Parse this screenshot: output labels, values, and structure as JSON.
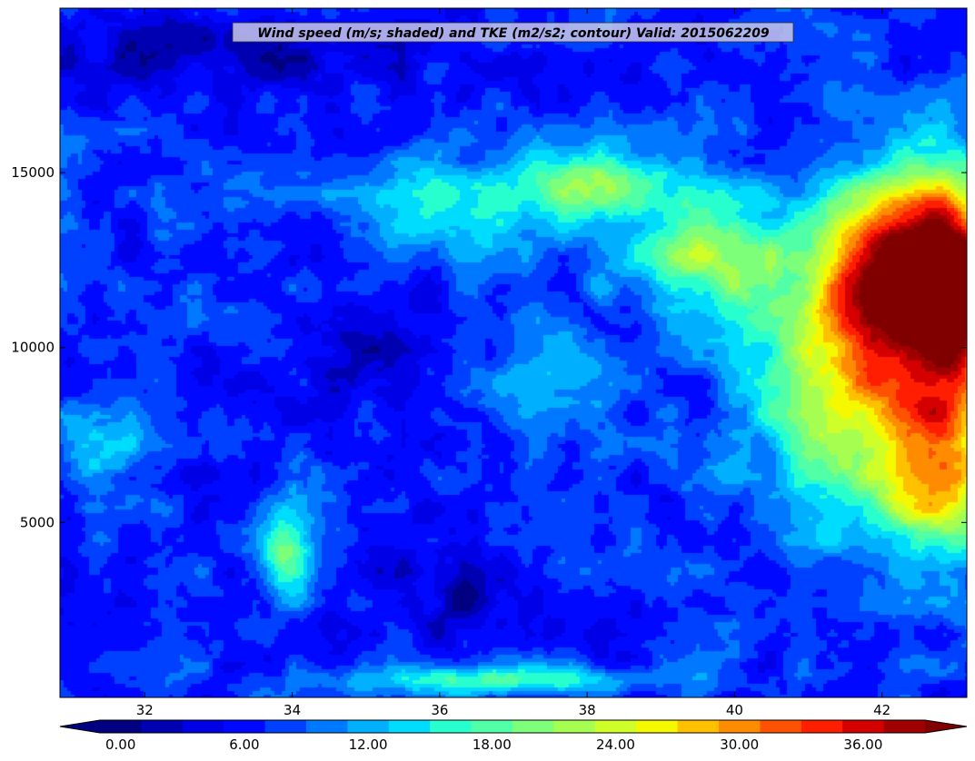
{
  "chart_data": {
    "type": "heatmap",
    "title": "Wind speed (m/s; shaded) and TKE (m2/s2; contour) Valid: 2015062209",
    "xlabel": "",
    "ylabel": "",
    "xlim": [
      30.85,
      43.15
    ],
    "ylim": [
      0,
      19700
    ],
    "x_ticks": [
      32,
      34,
      36,
      38,
      40,
      42
    ],
    "x_tick_labels": [
      "32",
      "34",
      "36",
      "38",
      "40",
      "42"
    ],
    "y_ticks": [
      5000,
      10000,
      15000
    ],
    "y_tick_labels": [
      "5000",
      "10000",
      "15000"
    ],
    "grid": false,
    "colorbar": {
      "orientation": "horizontal",
      "extend": "both",
      "levels": [
        0,
        2,
        4,
        6,
        8,
        10,
        12,
        14,
        16,
        18,
        20,
        22,
        24,
        26,
        28,
        30,
        32,
        34,
        36,
        38,
        40
      ],
      "tick_values": [
        0,
        6,
        12,
        18,
        24,
        30,
        36
      ],
      "tick_labels": [
        "0.00",
        "6.00",
        "12.00",
        "18.00",
        "24.00",
        "30.00",
        "36.00"
      ],
      "colors": [
        "#000080",
        "#0000b3",
        "#0000e6",
        "#0008ff",
        "#0040ff",
        "#0078ff",
        "#00b0ff",
        "#00dcfe",
        "#28ffce",
        "#50ffa6",
        "#7dff7a",
        "#a6ff50",
        "#ceff29",
        "#f6f800",
        "#ffc000",
        "#ff8c00",
        "#ff5200",
        "#ff1e00",
        "#d40000",
        "#a00000"
      ],
      "under_color": "#000080",
      "over_color": "#800000"
    },
    "field": {
      "description_units": "m/s",
      "features": [
        {
          "x": 42.3,
          "y": 12200,
          "speed": 38,
          "sx": 0.9,
          "sy": 2600
        },
        {
          "x": 43.0,
          "y": 11500,
          "speed": 35,
          "sx": 0.6,
          "sy": 3000
        },
        {
          "x": 41.5,
          "y": 9500,
          "speed": 26,
          "sx": 1.2,
          "sy": 4000
        },
        {
          "x": 42.8,
          "y": 6500,
          "speed": 28,
          "sx": 0.8,
          "sy": 2500
        },
        {
          "x": 39.6,
          "y": 12700,
          "speed": 22,
          "sx": 1.0,
          "sy": 1800
        },
        {
          "x": 38.2,
          "y": 14700,
          "speed": 19,
          "sx": 1.1,
          "sy": 1000
        },
        {
          "x": 36.5,
          "y": 14000,
          "speed": 16,
          "sx": 1.5,
          "sy": 1500
        },
        {
          "x": 37.4,
          "y": 9000,
          "speed": 13,
          "sx": 0.9,
          "sy": 2200
        },
        {
          "x": 31.3,
          "y": 7200,
          "speed": 16,
          "sx": 0.6,
          "sy": 1000
        },
        {
          "x": 33.9,
          "y": 4100,
          "speed": 19,
          "sx": 0.35,
          "sy": 1300
        },
        {
          "x": 36.8,
          "y": 500,
          "speed": 18,
          "sx": 2.0,
          "sy": 400
        },
        {
          "x": 34.8,
          "y": 9800,
          "speed": 4,
          "sx": 1.2,
          "sy": 2000
        },
        {
          "x": 36.2,
          "y": 3000,
          "speed": 3,
          "sx": 1.0,
          "sy": 1600
        },
        {
          "x": 33.0,
          "y": 18500,
          "speed": 3,
          "sx": 3.0,
          "sy": 1200
        }
      ]
    }
  }
}
